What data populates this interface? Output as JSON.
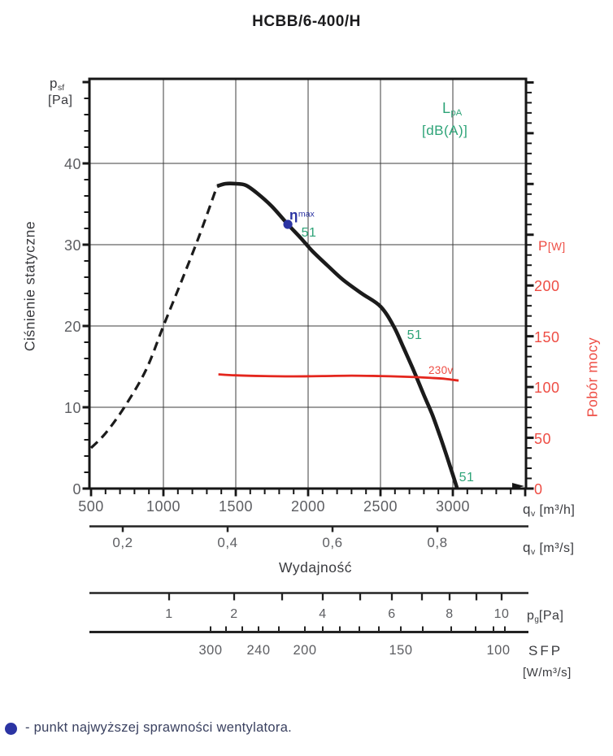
{
  "title": "HCBB/6-400/H",
  "colors": {
    "curve_black": "#1b1b1b",
    "curve_red": "#e4261d",
    "red_text": "#ee4d44",
    "green_text": "#2da377",
    "blue_marker": "#2b34a3",
    "legend_navy": "#3a4160",
    "grid": "#3c3c3c",
    "tick_text_gray": "#5d5e62"
  },
  "labels": {
    "psf": {
      "sym": "p",
      "sub": "sf",
      "unit": "[Pa]"
    },
    "cisnienie": "Ciśnienie statyczne",
    "p_w": {
      "sym": "P",
      "unit": "[W]"
    },
    "pobor": "Pobór mocy",
    "qv_m3h": {
      "sym": "q",
      "sub": "v",
      "unit": "[m³/h]"
    },
    "qv_m3s": {
      "sym": "q",
      "sub": "v",
      "unit": "[m³/s]"
    },
    "wydajnosc": "Wydajność",
    "pg": {
      "sym": "p",
      "sub": "g",
      "unit": "[Pa]"
    },
    "sfp": {
      "name": "SFP",
      "unit": "[W/m³/s]"
    }
  },
  "axes": {
    "pressure_ticks": [
      "40",
      "30",
      "20",
      "10",
      "0"
    ],
    "power_ticks": [
      "200",
      "150",
      "100",
      "50",
      "0"
    ],
    "flow_m3h_ticks": [
      "500",
      "1000",
      "1500",
      "2000",
      "2500",
      "3000"
    ],
    "flow_m3s_ticks": [
      "0,2",
      "0,4",
      "0,6",
      "0,8"
    ],
    "pg_ticks": [
      "1",
      "2",
      "4",
      "6",
      "8",
      "10"
    ],
    "sfp_ticks": [
      "300",
      "240",
      "200",
      "150",
      "100"
    ]
  },
  "annotations": {
    "lpa": {
      "sym": "L",
      "sub": "pA",
      "unit": "[dB(A)]"
    },
    "eta": {
      "sym": "η",
      "sup": "max"
    },
    "voltage": "230v"
  },
  "legend": {
    "text": "- punkt najwyższej sprawności wentylatora."
  },
  "chart_data": {
    "type": "line",
    "title": "HCBB/6-400/H",
    "x_axis": {
      "label": "Wydajność",
      "unit_primary": "qv [m³/h]",
      "unit_secondary": "qv [m³/s]",
      "range_m3h": [
        500,
        3500
      ],
      "ticks_m3h": [
        500,
        1000,
        1500,
        2000,
        2500,
        3000
      ],
      "ticks_m3s": [
        0.2,
        0.4,
        0.6,
        0.8
      ]
    },
    "y_axis_left": {
      "label": "Ciśnienie statyczne",
      "unit": "psf [Pa]",
      "range": [
        0,
        50
      ],
      "ticks": [
        0,
        10,
        20,
        30,
        40
      ]
    },
    "y_axis_right": {
      "label": "Pobór mocy",
      "unit": "P [W]",
      "range": [
        0,
        400
      ],
      "ticks": [
        0,
        50,
        100,
        150,
        200
      ]
    },
    "aux_scales": {
      "pg_pa": {
        "unit": "pg [Pa]",
        "ticks": [
          1,
          2,
          3,
          4,
          5,
          6,
          7,
          8,
          9,
          10
        ],
        "labeled": [
          1,
          2,
          4,
          6,
          8,
          10
        ]
      },
      "sfp": {
        "unit": "SFP [W/m³/s]",
        "labeled": [
          300,
          240,
          200,
          150,
          100
        ]
      }
    },
    "grid": true,
    "series": [
      {
        "name": "static-pressure-unstable-region",
        "axis": "left",
        "style": "dashed",
        "x": [
          500,
          600,
          730,
          880,
          1000,
          1120,
          1250,
          1371
        ],
        "y": [
          5,
          6.8,
          10,
          14.6,
          20,
          25.3,
          31.2,
          37.2
        ]
      },
      {
        "name": "static-pressure",
        "axis": "left",
        "style": "solid",
        "x": [
          1371,
          1430,
          1500,
          1570,
          1650,
          1750,
          1860,
          1950,
          2030,
          2130,
          2240,
          2370,
          2500,
          2590,
          2660,
          2730,
          2800,
          2860,
          2920,
          2980,
          3030
        ],
        "y": [
          37.2,
          37.5,
          37.5,
          37.3,
          36.3,
          34.7,
          32.5,
          30.8,
          29.2,
          27.5,
          25.7,
          24.0,
          22.4,
          20.0,
          17.3,
          14.5,
          11.5,
          9.0,
          6.0,
          2.8,
          0
        ]
      },
      {
        "name": "power-consumption-230v",
        "axis": "right",
        "style": "solid",
        "x": [
          1380,
          1500,
          1700,
          1900,
          2100,
          2300,
          2500,
          2700,
          2850,
          2950,
          3040
        ],
        "y": [
          112.5,
          111.5,
          110.8,
          110.5,
          110.8,
          111.2,
          110.8,
          110,
          109,
          108,
          106.3
        ]
      }
    ],
    "best_efficiency_point": {
      "q_m3h": 1860,
      "p_sf_pa": 32.5,
      "label": "ηmax"
    },
    "noise_labels_dba": [
      {
        "q_m3h": 2010,
        "p_sf_pa": 31.4,
        "value": "51"
      },
      {
        "q_m3h": 2740,
        "p_sf_pa": 18.8,
        "value": "51"
      },
      {
        "q_m3h": 3100,
        "p_sf_pa": 1.3,
        "value": "51"
      }
    ]
  }
}
